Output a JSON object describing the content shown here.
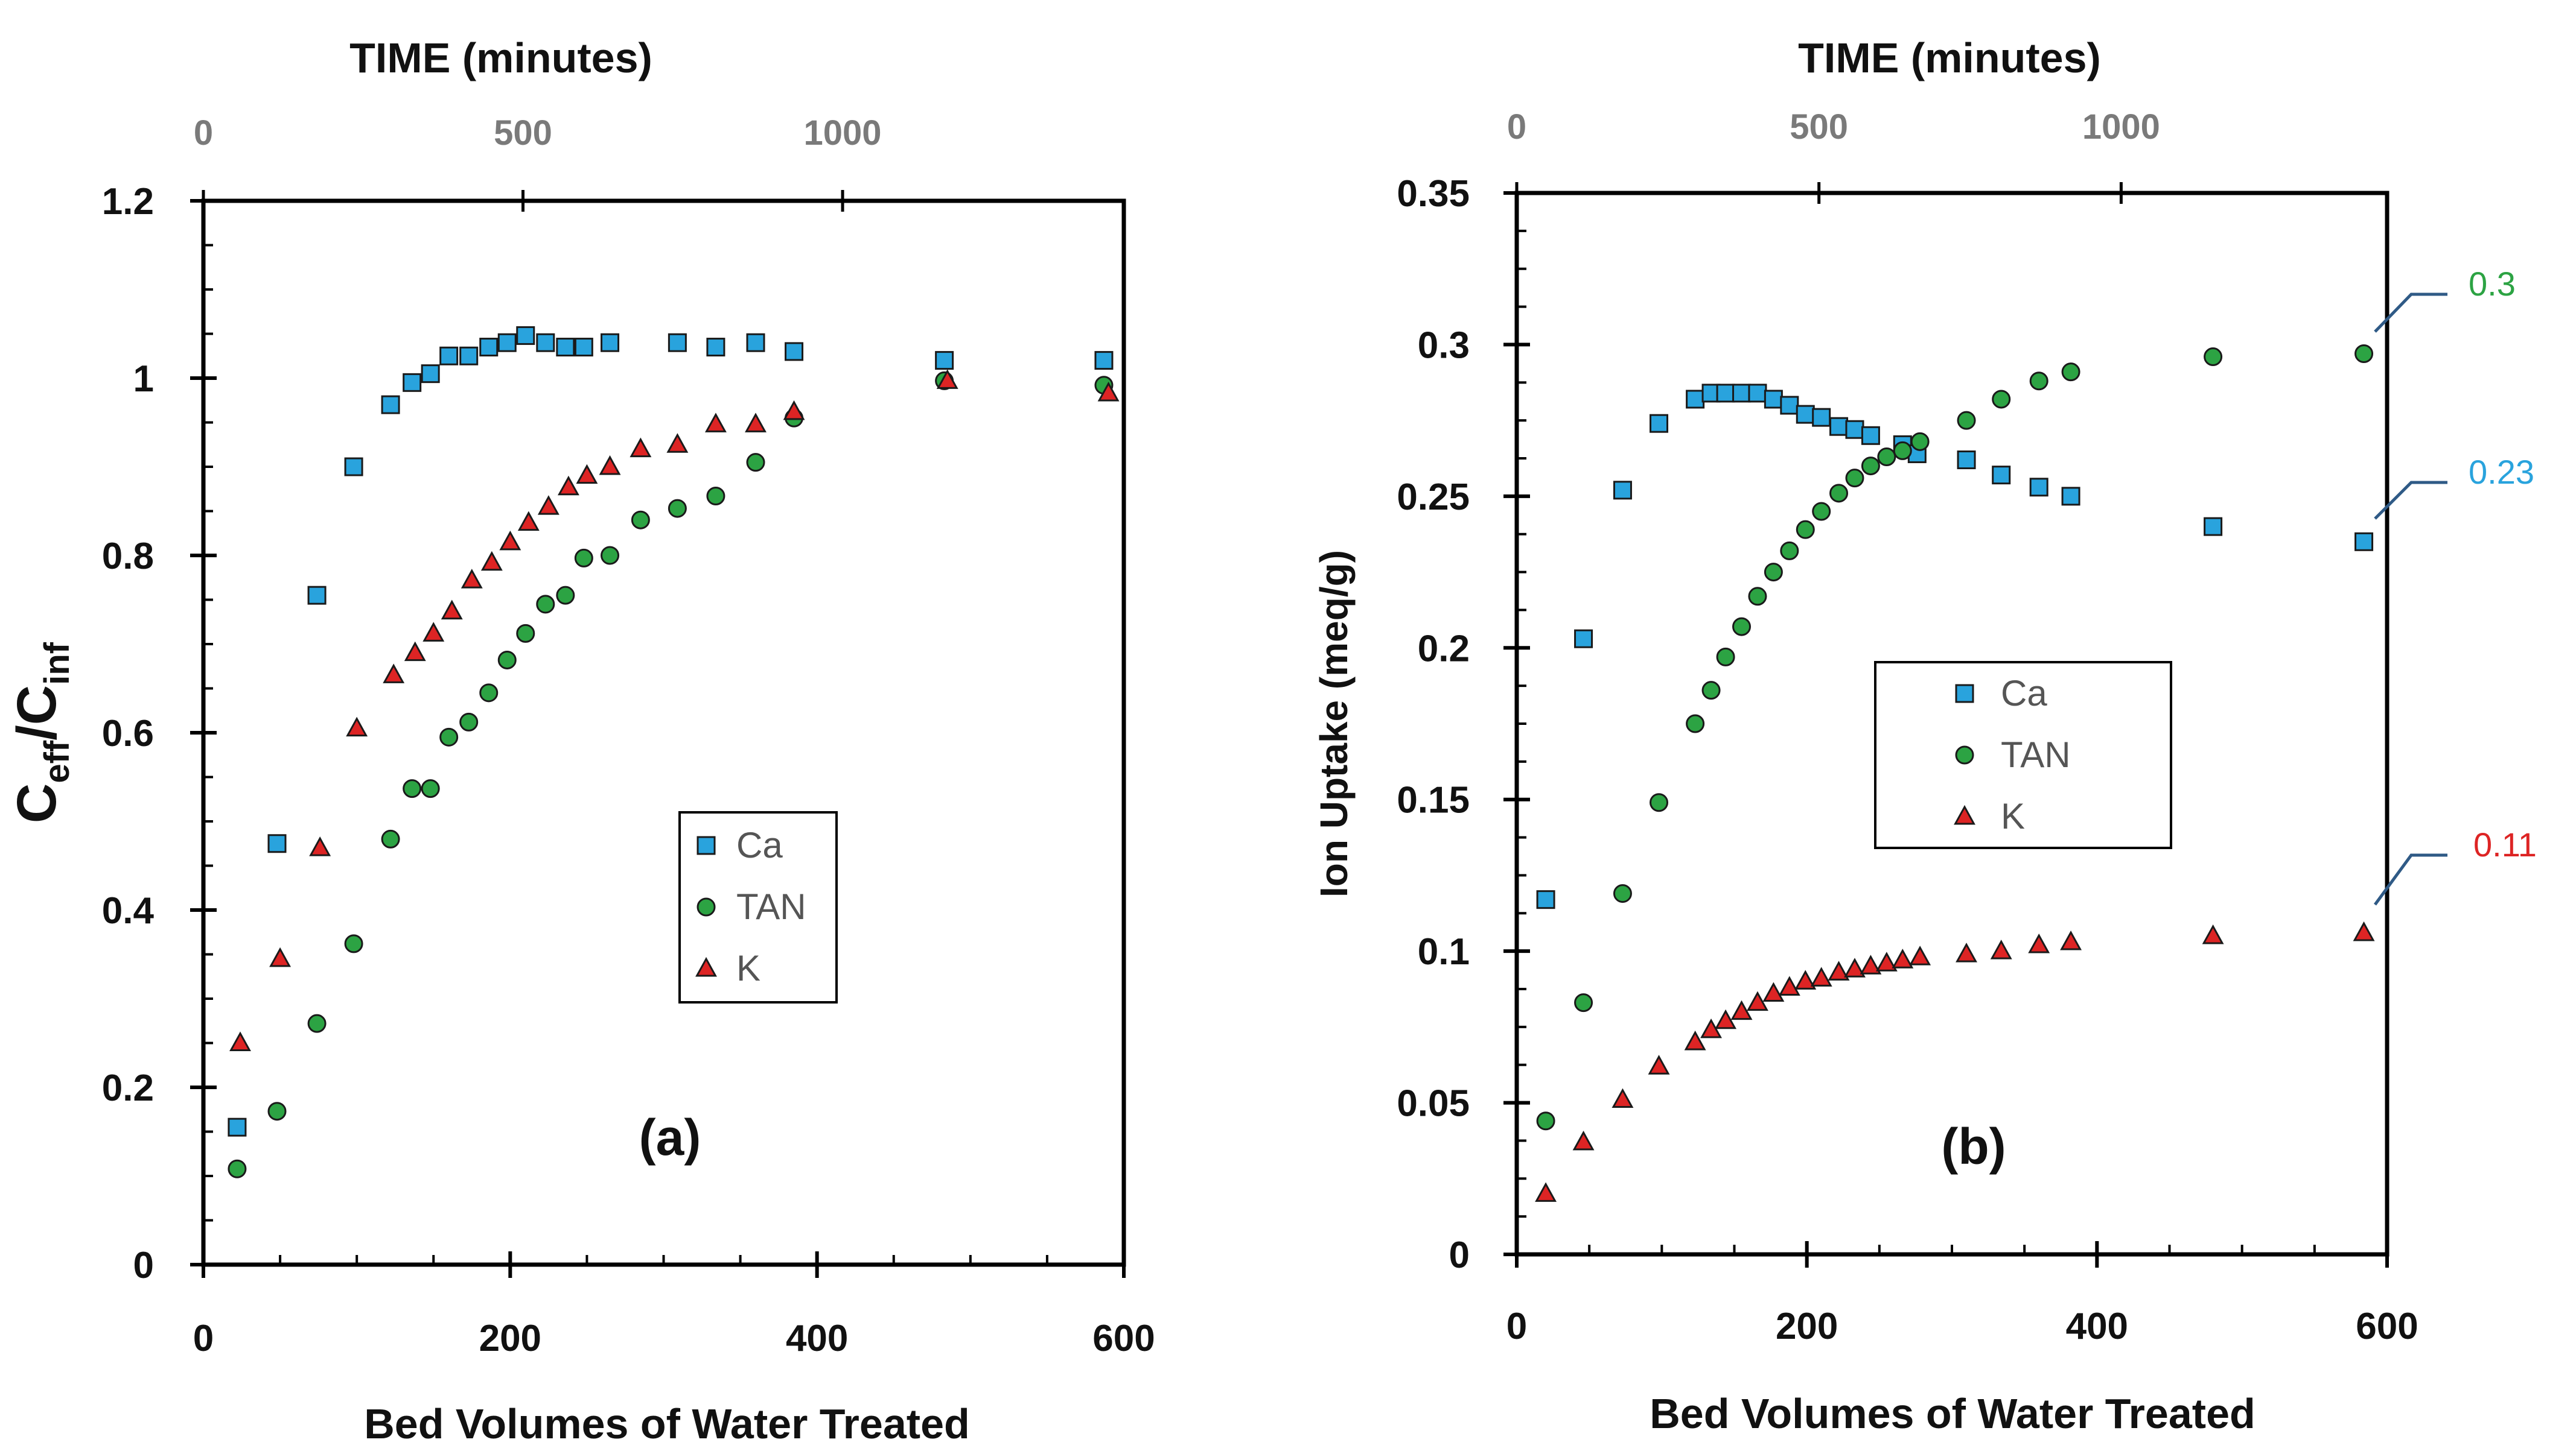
{
  "chart_data": [
    {
      "type": "scatter",
      "panel_label": "(a)",
      "top_axis_title": "TIME  (minutes)",
      "top_ticks": [
        "0",
        "500",
        "1000"
      ],
      "top_tick_values": [
        0,
        500,
        1000
      ],
      "top_xlim": [
        0,
        1440
      ],
      "xlabel": "Bed Volumes of Water Treated",
      "ylabel_main": "C",
      "ylabel_sub1": "eff",
      "ylabel_mid": "/C",
      "ylabel_sub2": "inf",
      "xlim": [
        0,
        600
      ],
      "ylim": [
        0,
        1.2
      ],
      "x_ticks": [
        "0",
        "200",
        "400",
        "600"
      ],
      "x_tick_values": [
        0,
        200,
        400,
        600
      ],
      "y_ticks": [
        "0",
        "0.2",
        "0.4",
        "0.6",
        "0.8",
        "1",
        "1.2"
      ],
      "y_tick_values": [
        0,
        0.2,
        0.4,
        0.6,
        0.8,
        1,
        1.2
      ],
      "legend": [
        "Ca",
        "TAN",
        "K"
      ],
      "series": [
        {
          "name": "Ca",
          "marker": "square",
          "color": "#29a3dd",
          "x": [
            22,
            48,
            74,
            98,
            122,
            136,
            148,
            160,
            173,
            186,
            198,
            210,
            223,
            236,
            248,
            265,
            309,
            334,
            360,
            385,
            483,
            587
          ],
          "y": [
            0.155,
            0.475,
            0.755,
            0.9,
            0.97,
            0.995,
            1.005,
            1.025,
            1.025,
            1.035,
            1.04,
            1.048,
            1.04,
            1.035,
            1.035,
            1.04,
            1.04,
            1.035,
            1.04,
            1.03,
            1.02,
            1.02
          ]
        },
        {
          "name": "TAN",
          "marker": "circle",
          "color": "#2ca343",
          "x": [
            22,
            48,
            74,
            98,
            122,
            136,
            148,
            160,
            173,
            186,
            198,
            210,
            223,
            236,
            248,
            265,
            285,
            309,
            334,
            360,
            385,
            483,
            587
          ],
          "y": [
            0.108,
            0.173,
            0.272,
            0.362,
            0.48,
            0.537,
            0.537,
            0.595,
            0.612,
            0.645,
            0.682,
            0.712,
            0.745,
            0.755,
            0.797,
            0.8,
            0.84,
            0.853,
            0.867,
            0.905,
            0.955,
            0.997,
            0.992
          ]
        },
        {
          "name": "K",
          "marker": "triangle",
          "color": "#dd2424",
          "x": [
            24,
            50,
            76,
            100,
            124,
            138,
            150,
            162,
            175,
            188,
            200,
            212,
            225,
            238,
            250,
            265,
            285,
            309,
            334,
            360,
            385,
            485,
            590
          ],
          "y": [
            0.25,
            0.345,
            0.47,
            0.605,
            0.665,
            0.69,
            0.712,
            0.737,
            0.772,
            0.792,
            0.815,
            0.837,
            0.855,
            0.877,
            0.89,
            0.9,
            0.92,
            0.925,
            0.948,
            0.948,
            0.962,
            0.997,
            0.983
          ]
        }
      ]
    },
    {
      "type": "scatter",
      "panel_label": "(b)",
      "top_axis_title": "TIME  (minutes)",
      "top_ticks": [
        "0",
        "500",
        "1000"
      ],
      "top_tick_values": [
        0,
        500,
        1000
      ],
      "top_xlim": [
        0,
        1440
      ],
      "xlabel": "Bed Volumes of Water Treated",
      "ylabel": "Ion Uptake (meq/g)",
      "xlim": [
        0,
        600
      ],
      "ylim": [
        0,
        0.35
      ],
      "x_ticks": [
        "0",
        "200",
        "400",
        "600"
      ],
      "x_tick_values": [
        0,
        200,
        400,
        600
      ],
      "y_ticks": [
        "0",
        "0.05",
        "0.1",
        "0.15",
        "0.2",
        "0.25",
        "0.3",
        "0.35"
      ],
      "y_tick_values": [
        0,
        0.05,
        0.1,
        0.15,
        0.2,
        0.25,
        0.3,
        0.35
      ],
      "legend": [
        "Ca",
        "TAN",
        "K"
      ],
      "annotations": [
        {
          "text": "0.3",
          "color": "#2ca343",
          "series": "TAN"
        },
        {
          "text": "0.23",
          "color": "#29a3dd",
          "series": "Ca"
        },
        {
          "text": "0.11",
          "color": "#dd2424",
          "series": "K"
        }
      ],
      "series": [
        {
          "name": "Ca",
          "marker": "square",
          "color": "#29a3dd",
          "x": [
            20,
            46,
            73,
            98,
            123,
            134,
            144,
            155,
            166,
            177,
            188,
            199,
            210,
            222,
            233,
            244,
            266,
            276,
            310,
            334,
            360,
            382,
            480,
            584
          ],
          "y": [
            0.117,
            0.203,
            0.252,
            0.274,
            0.282,
            0.284,
            0.284,
            0.284,
            0.284,
            0.282,
            0.28,
            0.277,
            0.276,
            0.273,
            0.272,
            0.27,
            0.267,
            0.264,
            0.262,
            0.257,
            0.253,
            0.25,
            0.24,
            0.235
          ]
        },
        {
          "name": "TAN",
          "marker": "circle",
          "color": "#2ca343",
          "x": [
            20,
            46,
            73,
            98,
            123,
            134,
            144,
            155,
            166,
            177,
            188,
            199,
            210,
            222,
            233,
            244,
            255,
            266,
            278,
            310,
            334,
            360,
            382,
            480,
            584
          ],
          "y": [
            0.044,
            0.083,
            0.119,
            0.149,
            0.175,
            0.186,
            0.197,
            0.207,
            0.217,
            0.225,
            0.232,
            0.239,
            0.245,
            0.251,
            0.256,
            0.26,
            0.263,
            0.265,
            0.268,
            0.275,
            0.282,
            0.288,
            0.291,
            0.296,
            0.297
          ]
        },
        {
          "name": "K",
          "marker": "triangle",
          "color": "#dd2424",
          "x": [
            20,
            46,
            73,
            98,
            123,
            134,
            144,
            155,
            166,
            177,
            188,
            199,
            210,
            222,
            233,
            244,
            255,
            266,
            278,
            310,
            334,
            360,
            382,
            480,
            584
          ],
          "y": [
            0.02,
            0.037,
            0.051,
            0.062,
            0.07,
            0.074,
            0.077,
            0.08,
            0.083,
            0.086,
            0.088,
            0.09,
            0.091,
            0.093,
            0.094,
            0.095,
            0.096,
            0.097,
            0.098,
            0.099,
            0.1,
            0.102,
            0.103,
            0.105,
            0.106
          ]
        }
      ]
    }
  ]
}
